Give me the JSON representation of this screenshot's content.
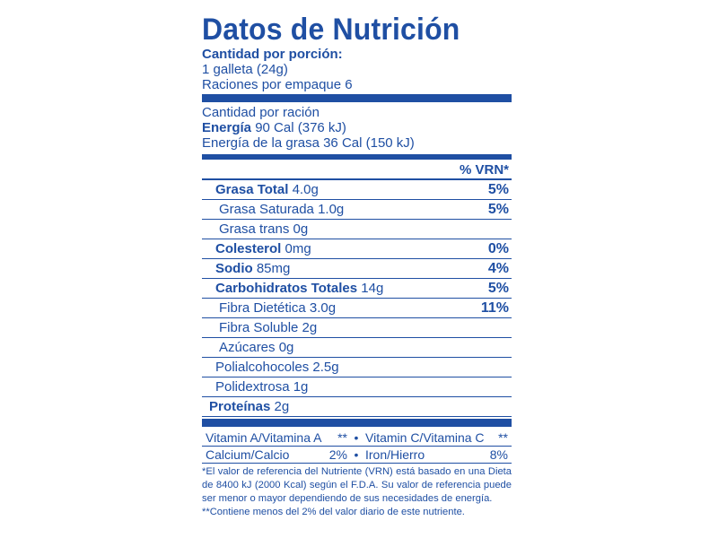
{
  "header": {
    "title": "Datos de Nutrición",
    "serving_heading": "Cantidad por porción:",
    "serving_size": "1 galleta (24g)",
    "servings": "Raciones por empaque 6"
  },
  "energy": {
    "per_ration": "Cantidad por ración",
    "energy_label": "Energía",
    "energy_value": " 90 Cal (376 kJ)",
    "fat_energy": "Energía de la grasa 36 Cal (150 kJ)"
  },
  "vrn_heading": "% VRN*",
  "nutrients": [
    {
      "name": "Grasa Total",
      "amount": " 4.0g",
      "pct": "5%",
      "bold": true,
      "indent": 1
    },
    {
      "name": "Grasa Saturada",
      "amount": " 1.0g",
      "pct": "5%",
      "bold": false,
      "indent": 2
    },
    {
      "name": "Grasa trans",
      "amount": " 0g",
      "pct": "",
      "bold": false,
      "indent": 2
    },
    {
      "name": "Colesterol",
      "amount": " 0mg",
      "pct": "0%",
      "bold": true,
      "indent": 1
    },
    {
      "name": "Sodio",
      "amount": " 85mg",
      "pct": "4%",
      "bold": true,
      "indent": 1
    },
    {
      "name": "Carbohidratos Totales",
      "amount": " 14g",
      "pct": "5%",
      "bold": true,
      "indent": 1
    },
    {
      "name": "Fibra Dietética",
      "amount": " 3.0g",
      "pct": "11%",
      "bold": false,
      "indent": 2
    },
    {
      "name": "Fibra Soluble",
      "amount": " 2g",
      "pct": "",
      "bold": false,
      "indent": 2
    },
    {
      "name": "Azúcares",
      "amount": " 0g",
      "pct": "",
      "bold": false,
      "indent": 2
    },
    {
      "name": "Polialcohocoles",
      "amount": " 2.5g",
      "pct": "",
      "bold": false,
      "indent": 1
    },
    {
      "name": "Polidextrosa",
      "amount": " 1g",
      "pct": "",
      "bold": false,
      "indent": 1
    },
    {
      "name": "Proteínas",
      "amount": " 2g",
      "pct": "",
      "bold": true,
      "indent": 0
    }
  ],
  "vitamins": [
    {
      "left_name": "Vitamin A/Vitamina A",
      "left_value": "**",
      "right_name": "Vitamin C/Vitamina C",
      "right_value": "**"
    },
    {
      "left_name": "Calcium/Calcio",
      "left_value": "2%",
      "right_name": "Iron/Hierro",
      "right_value": "8%"
    }
  ],
  "bullet": "•",
  "footnotes": {
    "vrn_note": "*El valor de referencia del Nutriente (VRN) está basado en una Dieta de 8400 kJ (2000 Kcal) según el F.D.A. Su valor de referencia puede ser menor o mayor dependiendo de sus necesidades de energía.",
    "less_note": "**Contiene menos del 2% del valor diario de este nutriente."
  }
}
